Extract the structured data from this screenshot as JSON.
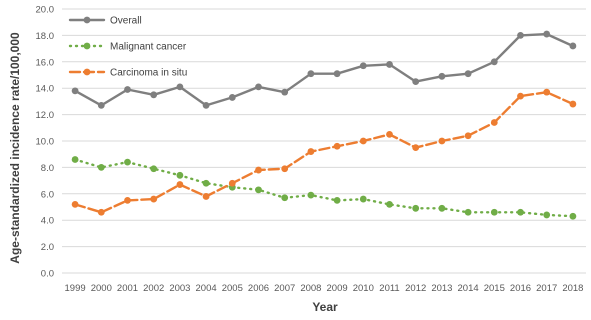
{
  "chart_data": {
    "type": "line",
    "title": "",
    "xlabel": "Year",
    "ylabel": "Age-standardized incidence rate/100,000",
    "ylim": [
      0,
      20
    ],
    "yticks": [
      "0.0",
      "2.0",
      "4.0",
      "6.0",
      "8.0",
      "10.0",
      "12.0",
      "14.0",
      "16.0",
      "18.0",
      "20.0"
    ],
    "grid": true,
    "legend_position": "top-left",
    "categories": [
      "1999",
      "2000",
      "2001",
      "2002",
      "2003",
      "2004",
      "2005",
      "2006",
      "2007",
      "2008",
      "2009",
      "2010",
      "2011",
      "2012",
      "2013",
      "2014",
      "2015",
      "2016",
      "2017",
      "2018"
    ],
    "series": [
      {
        "name": "Overall",
        "color": "#7f7f7f",
        "line_style": "solid",
        "values": [
          13.8,
          12.7,
          13.9,
          13.5,
          14.1,
          12.7,
          13.3,
          14.1,
          13.7,
          15.1,
          15.1,
          15.7,
          15.8,
          14.5,
          14.9,
          15.1,
          16.0,
          18.0,
          18.1,
          17.2
        ]
      },
      {
        "name": "Malignant cancer",
        "color": "#70ad47",
        "line_style": "dotted",
        "values": [
          8.6,
          8.0,
          8.4,
          7.9,
          7.4,
          6.8,
          6.5,
          6.3,
          5.7,
          5.9,
          5.5,
          5.6,
          5.2,
          4.9,
          4.9,
          4.6,
          4.6,
          4.6,
          4.4,
          4.3
        ]
      },
      {
        "name": "Carcinoma in situ",
        "color": "#ed7d31",
        "line_style": "dashed",
        "values": [
          5.2,
          4.6,
          5.5,
          5.6,
          6.7,
          5.8,
          6.8,
          7.8,
          7.9,
          9.2,
          9.6,
          10.0,
          10.5,
          9.5,
          10.0,
          10.4,
          11.4,
          13.4,
          13.7,
          12.8
        ]
      }
    ]
  }
}
